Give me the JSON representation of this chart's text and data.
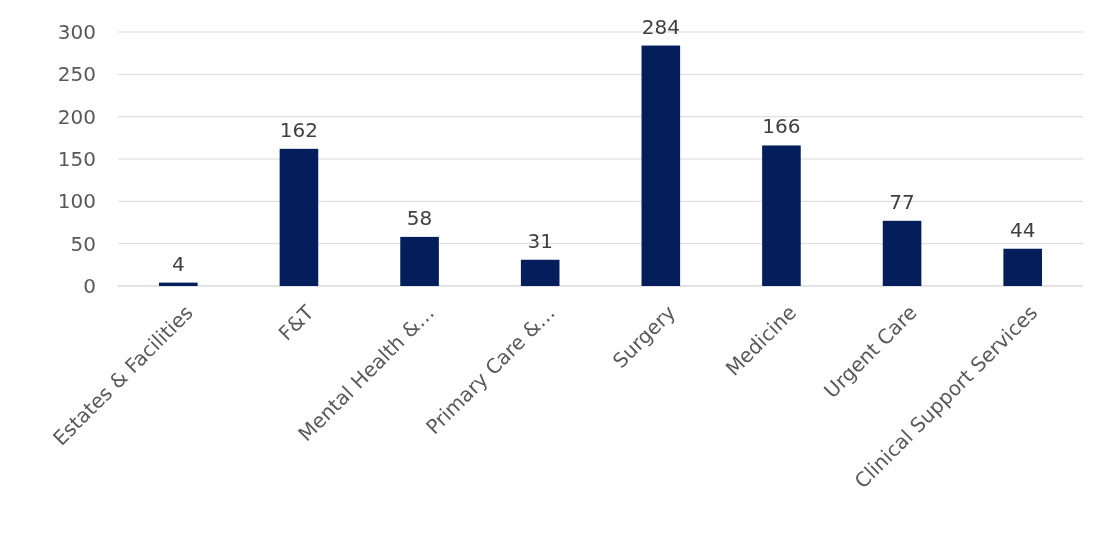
{
  "chart_data": {
    "type": "bar",
    "categories": [
      "Estates & Facilities",
      "F&T",
      "Mental Health &…",
      "Primary Care &…",
      "Surgery",
      "Medicine",
      "Urgent Care",
      "Clinical Support Services"
    ],
    "values": [
      4,
      162,
      58,
      31,
      284,
      166,
      77,
      44
    ],
    "color": "#041e5c",
    "ylim": [
      0,
      300
    ],
    "yticks": [
      0,
      50,
      100,
      150,
      200,
      250,
      300
    ],
    "grid": "y",
    "data_labels": true
  }
}
